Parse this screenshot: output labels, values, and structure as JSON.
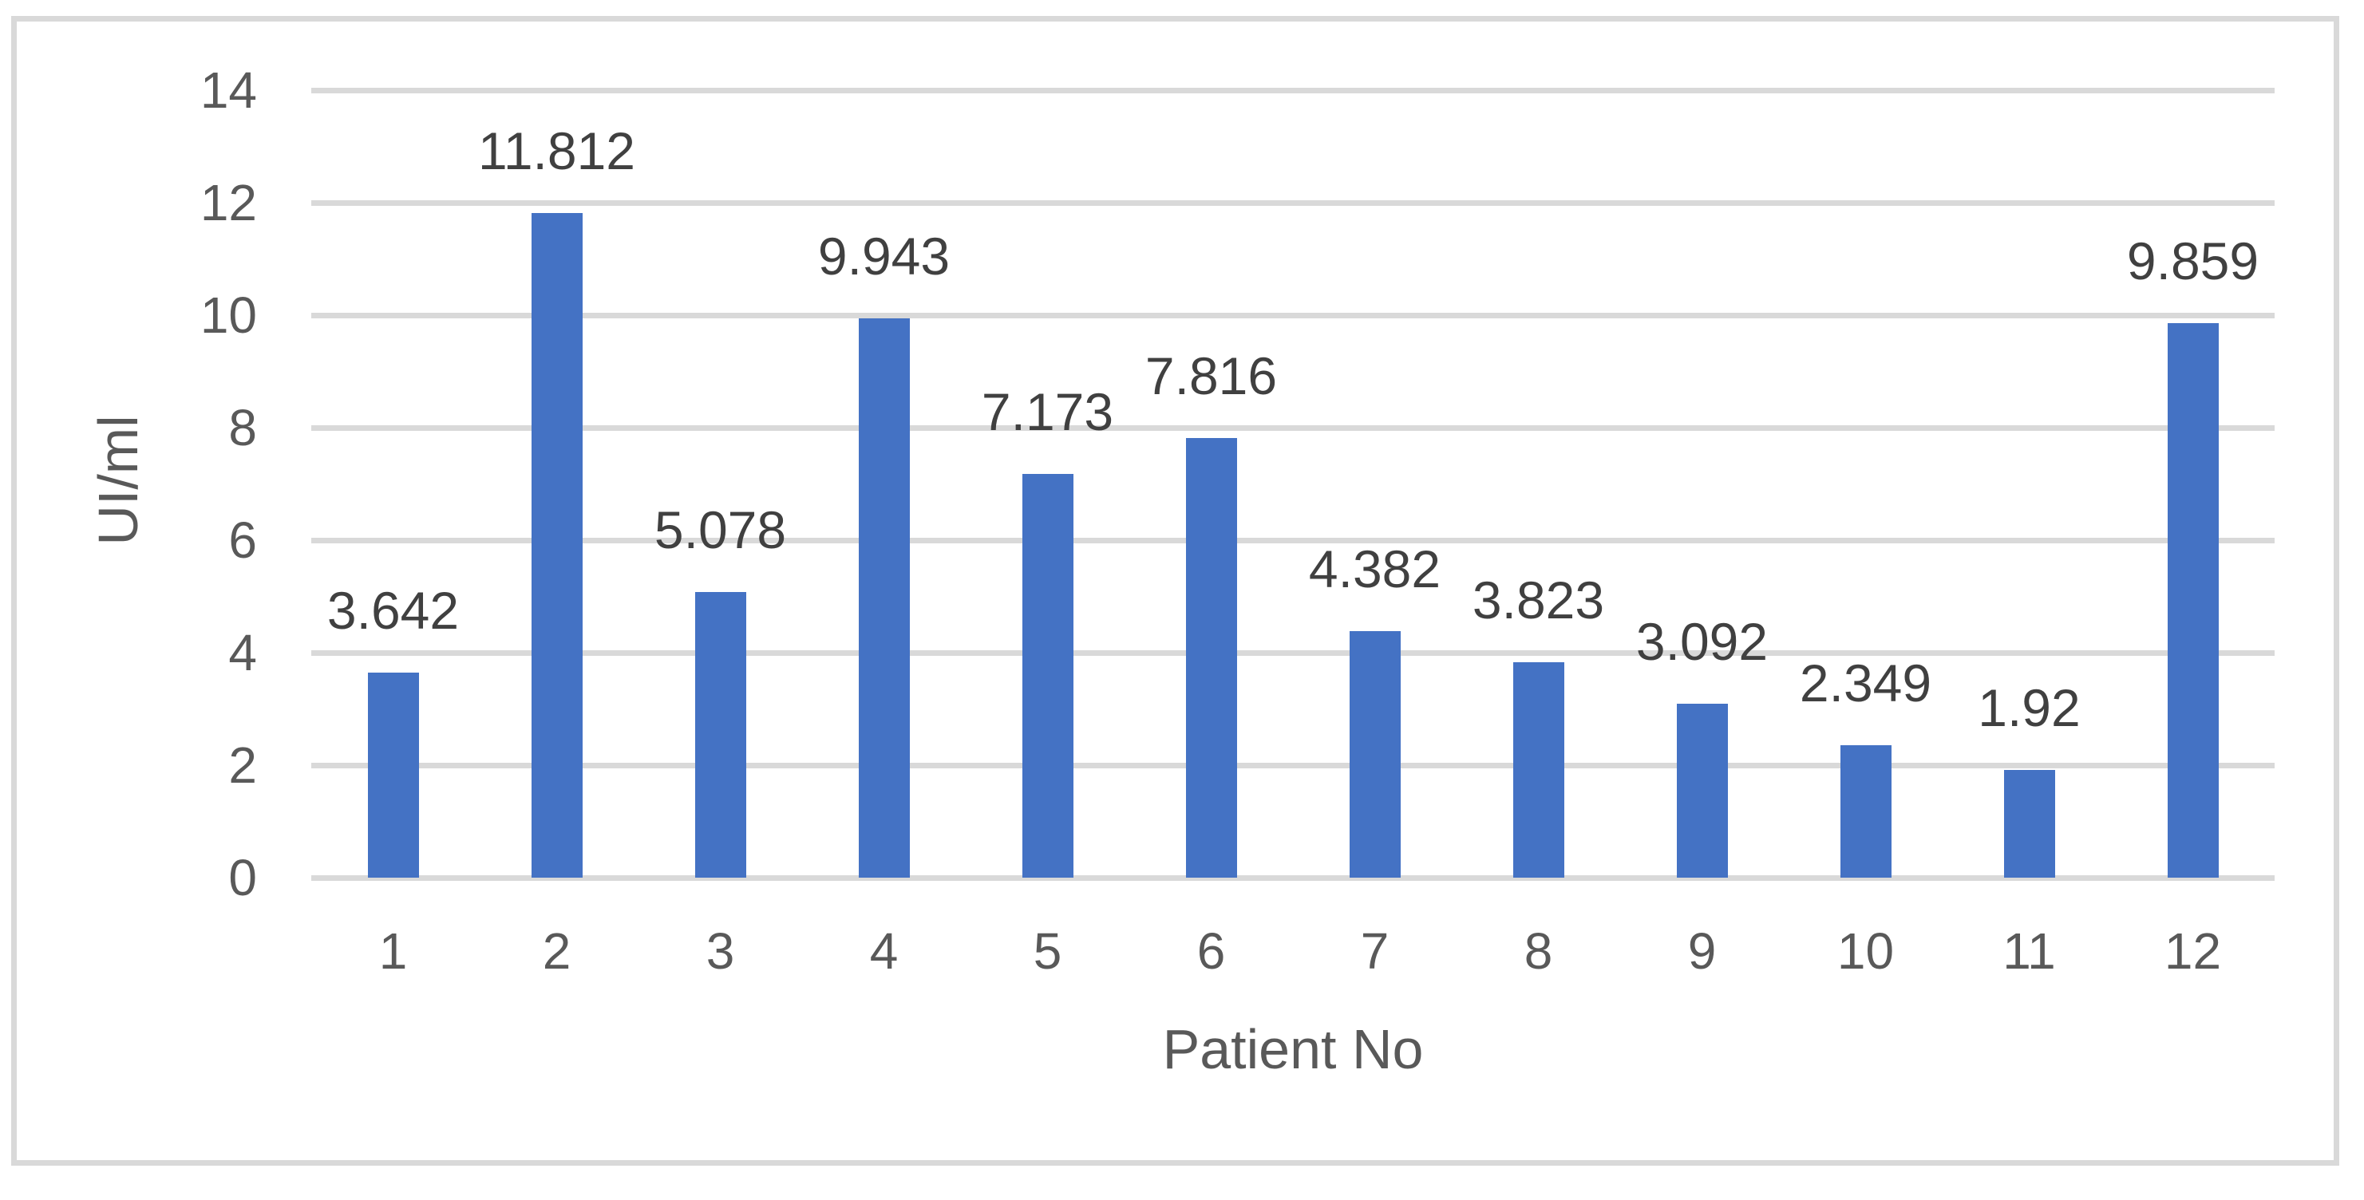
{
  "chart_data": {
    "type": "bar",
    "title": "",
    "categories": [
      "1",
      "2",
      "3",
      "4",
      "5",
      "6",
      "7",
      "8",
      "9",
      "10",
      "11",
      "12"
    ],
    "values": [
      3.642,
      11.812,
      5.078,
      9.943,
      7.173,
      7.816,
      4.382,
      3.823,
      3.092,
      2.349,
      1.92,
      9.859
    ],
    "value_labels": [
      "3.642",
      "11.812",
      "5.078",
      "9.943",
      "7.173",
      "7.816",
      "4.382",
      "3.823",
      "3.092",
      "2.349",
      "1.92",
      "9.859"
    ],
    "xlabel": "Patient No",
    "ylabel": "UI/ml",
    "ylim": [
      0,
      14
    ],
    "y_ticks": [
      "0",
      "2",
      "4",
      "6",
      "8",
      "10",
      "12",
      "14"
    ],
    "grid": true,
    "legend": "none",
    "colors": {
      "bar": "#4472C4",
      "gridline": "#D9D9D9",
      "frame_border": "#D9D9D9",
      "tick_label": "#595959",
      "data_label": "#404040",
      "axis_title": "#595959",
      "background": "#FFFFFF"
    }
  }
}
